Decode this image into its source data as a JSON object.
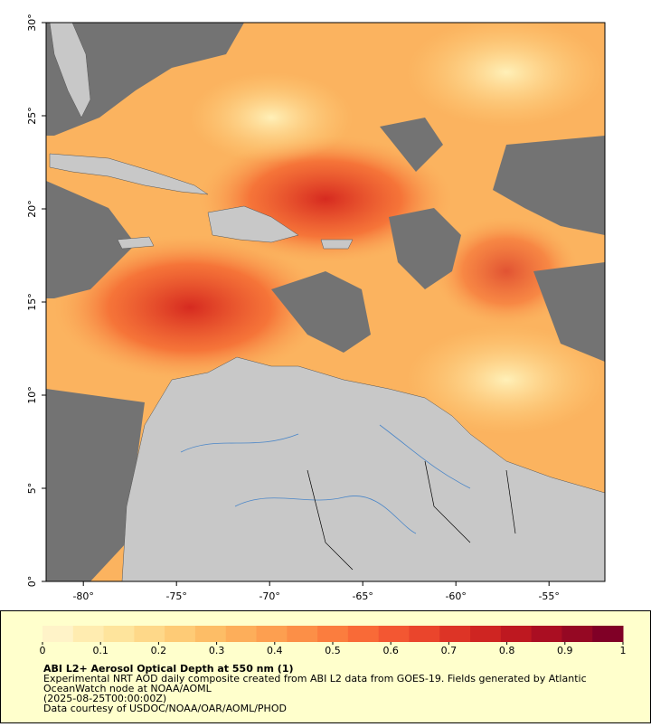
{
  "map": {
    "xlim": [
      -82,
      -52
    ],
    "ylim": [
      0,
      30
    ],
    "xticks": [
      {
        "value": -80,
        "label": "-80°"
      },
      {
        "value": -75,
        "label": "-75°"
      },
      {
        "value": -70,
        "label": "-70°"
      },
      {
        "value": -65,
        "label": "-65°"
      },
      {
        "value": -60,
        "label": "-60°"
      },
      {
        "value": -55,
        "label": "-55°"
      }
    ],
    "yticks": [
      {
        "value": 0,
        "label": "0°"
      },
      {
        "value": 5,
        "label": "5°"
      },
      {
        "value": 10,
        "label": "10°"
      },
      {
        "value": 15,
        "label": "15°"
      },
      {
        "value": 20,
        "label": "20°"
      },
      {
        "value": 25,
        "label": "25°"
      },
      {
        "value": 30,
        "label": "30°"
      }
    ]
  },
  "colorbar": {
    "range": [
      0,
      1
    ],
    "ticks": [
      0,
      0.1,
      0.2,
      0.3,
      0.4,
      0.5,
      0.6,
      0.7,
      0.8,
      0.9,
      1
    ],
    "colors": [
      "#fff3c8",
      "#ffecb0",
      "#fee49c",
      "#fed889",
      "#fecb76",
      "#fdbd66",
      "#fdae5a",
      "#fd9f50",
      "#fc8f47",
      "#fb7d3e",
      "#f96a37",
      "#f35732",
      "#ea452c",
      "#dd3426",
      "#cf2522",
      "#be1820",
      "#aa0e22",
      "#950823",
      "#800026"
    ]
  },
  "caption": {
    "title": "ABI L2+ Aerosol Optical Depth at 550 nm (1)",
    "lines": [
      "Experimental NRT AOD daily composite created from ABI L2 data from GOES-19. Fields generated by Atlantic",
      "OceanWatch node at NOAA/AOML",
      "(2025-08-25T00:00:00Z)",
      "Data courtesy of USDOC/NOAA/OAR/AOML/PHOD"
    ]
  }
}
